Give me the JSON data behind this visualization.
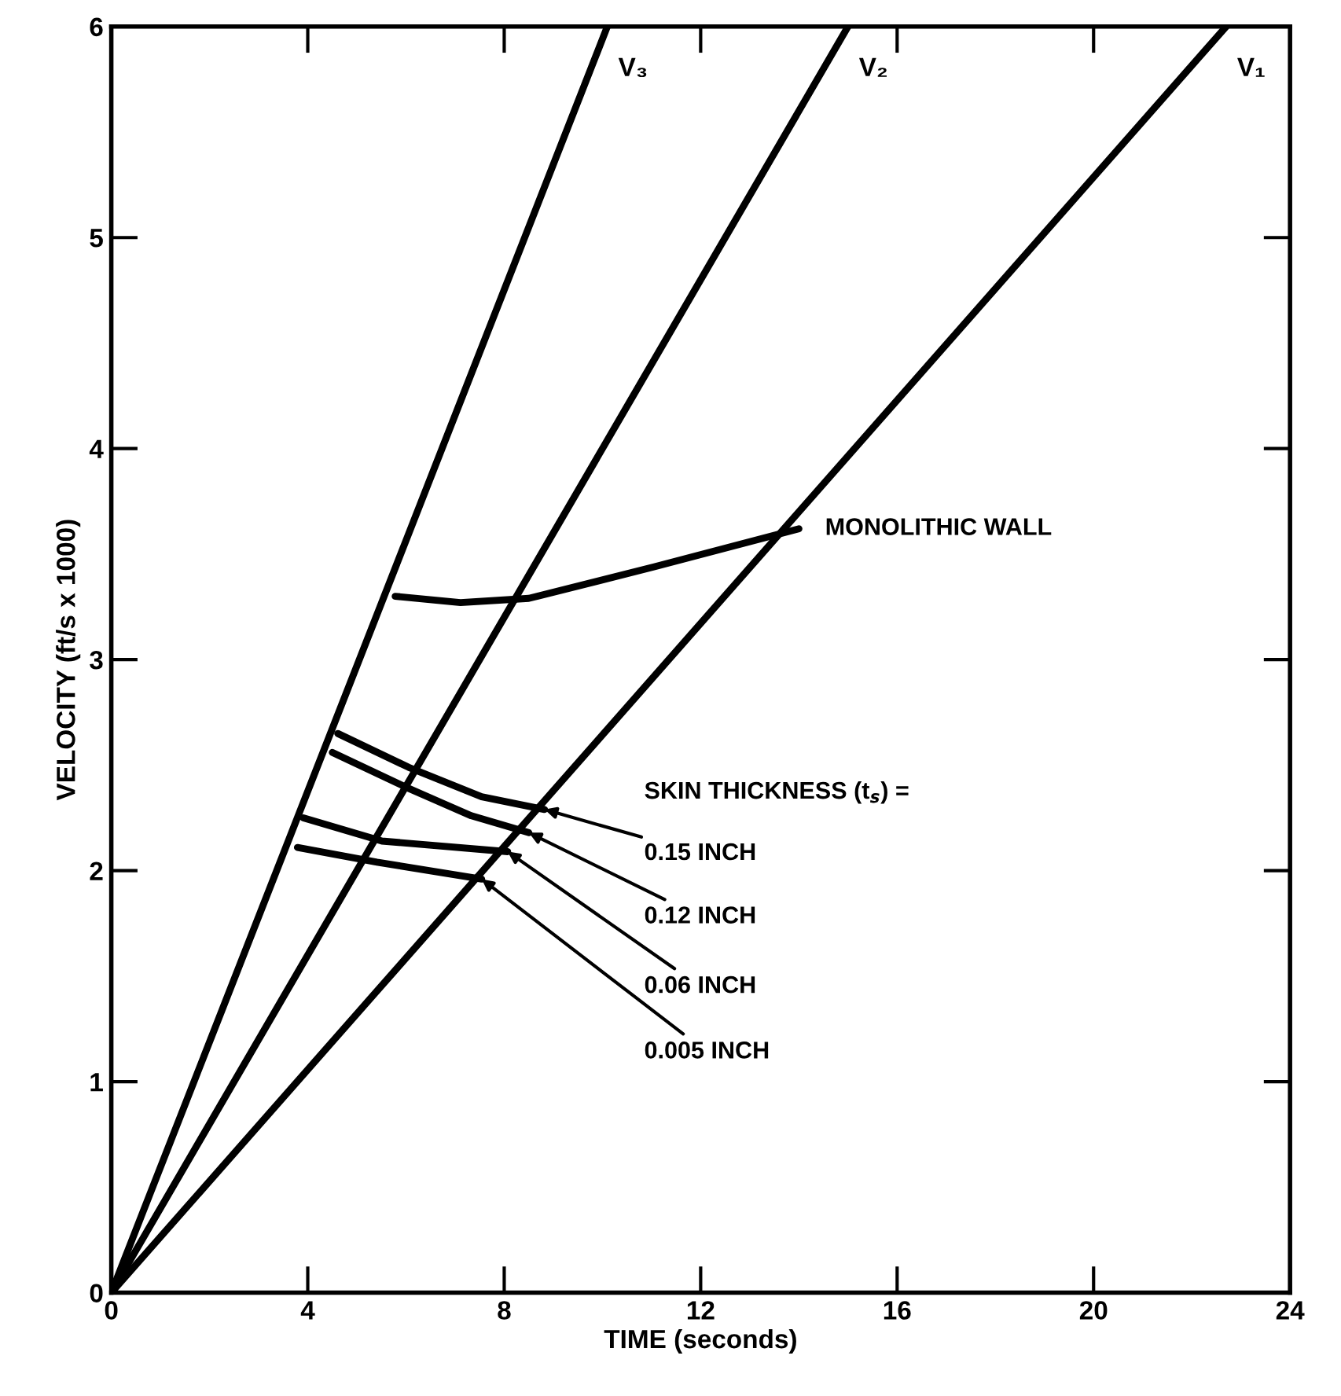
{
  "chart_data": {
    "type": "line",
    "xlabel": "TIME (seconds)",
    "ylabel": "VELOCITY (ft/s x 1000)",
    "xlim": [
      0,
      24
    ],
    "ylim": [
      0,
      6
    ],
    "xticks": [
      0,
      4,
      8,
      12,
      16,
      20,
      24
    ],
    "yticks": [
      0,
      1,
      2,
      3,
      4,
      5,
      6
    ],
    "grid": false,
    "marker": "none",
    "line_style": "solid",
    "series": [
      {
        "name": "V₃",
        "color": "#000000",
        "x": [
          0,
          10.1
        ],
        "values": [
          0,
          6
        ]
      },
      {
        "name": "V₂",
        "color": "#000000",
        "x": [
          0,
          15.0
        ],
        "values": [
          0,
          6
        ]
      },
      {
        "name": "V₁",
        "color": "#000000",
        "x": [
          0,
          22.7
        ],
        "values": [
          0,
          6
        ]
      },
      {
        "name": "MONOLITHIC WALL",
        "color": "#000000",
        "x": [
          5.78,
          7.11,
          8.5,
          11.06,
          14.0
        ],
        "values": [
          3.3,
          3.27,
          3.29,
          3.44,
          3.62
        ]
      },
      {
        "name": "0.15 INCH",
        "color": "#000000",
        "x": [
          4.61,
          6.05,
          7.54,
          8.82
        ],
        "values": [
          2.65,
          2.49,
          2.35,
          2.29
        ]
      },
      {
        "name": "0.12 INCH",
        "color": "#000000",
        "x": [
          4.5,
          6.05,
          7.33,
          8.5
        ],
        "values": [
          2.56,
          2.39,
          2.26,
          2.18
        ]
      },
      {
        "name": "0.06 INCH",
        "color": "#000000",
        "x": [
          3.91,
          5.51,
          8.07
        ],
        "values": [
          2.25,
          2.14,
          2.09
        ]
      },
      {
        "name": "0.005 INCH",
        "color": "#000000",
        "x": [
          3.79,
          5.41,
          7.54
        ],
        "values": [
          2.11,
          2.04,
          1.96
        ]
      }
    ],
    "annotations": [
      "SKIN THICKNESS (t$_{s}$) ="
    ]
  }
}
